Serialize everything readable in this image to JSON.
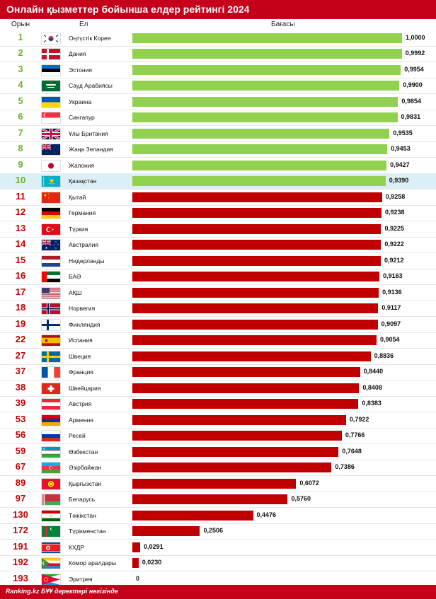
{
  "header": {
    "title": "Онлайн қызметтер бойынша елдер рейтингі 2024",
    "col_rank": "Орын",
    "col_country": "Ел",
    "col_score": "Бағасы"
  },
  "footer": {
    "source": "Ranking.kz БҰҰ деректері негізінде"
  },
  "colors": {
    "top": "#92d050",
    "other": "#c00000",
    "title_bg": "#c4001a",
    "rank_top": "#6ab42a",
    "rank_other": "#c00000",
    "highlight_bg": "#ddeff6"
  },
  "chart_data": {
    "type": "bar",
    "title": "Онлайн қызметтер бойынша елдер рейтингі 2024",
    "xlabel": "Бағасы",
    "ylabel": "Ел",
    "xlim": [
      0,
      1
    ],
    "highlighted": "Қазақстан",
    "rows": [
      {
        "rank": "1",
        "country": "Оңтүстік Корея",
        "value": 1.0,
        "label": "1,0000",
        "flag": "south-korea"
      },
      {
        "rank": "2",
        "country": "Дания",
        "value": 0.9992,
        "label": "0,9992",
        "flag": "denmark"
      },
      {
        "rank": "3",
        "country": "Эстония",
        "value": 0.9954,
        "label": "0,9954",
        "flag": "estonia"
      },
      {
        "rank": "4",
        "country": "Сауд Арабиясы",
        "value": 0.99,
        "label": "0,9900",
        "flag": "saudi-arabia"
      },
      {
        "rank": "5",
        "country": "Украина",
        "value": 0.9854,
        "label": "0,9854",
        "flag": "ukraine"
      },
      {
        "rank": "6",
        "country": "Сингапур",
        "value": 0.9831,
        "label": "0,9831",
        "flag": "singapore"
      },
      {
        "rank": "7",
        "country": "Ұлы Британия",
        "value": 0.9535,
        "label": "0,9535",
        "flag": "united-kingdom"
      },
      {
        "rank": "8",
        "country": "Жаңа Зеландия",
        "value": 0.9453,
        "label": "0,9453",
        "flag": "new-zealand"
      },
      {
        "rank": "9",
        "country": "Жапония",
        "value": 0.9427,
        "label": "0,9427",
        "flag": "japan"
      },
      {
        "rank": "10",
        "country": "Қазақстан",
        "value": 0.939,
        "label": "0,9390",
        "flag": "kazakhstan"
      },
      {
        "rank": "11",
        "country": "Қытай",
        "value": 0.9258,
        "label": "0,9258",
        "flag": "china"
      },
      {
        "rank": "12",
        "country": "Германия",
        "value": 0.9238,
        "label": "0,9238",
        "flag": "germany"
      },
      {
        "rank": "13",
        "country": "Түркия",
        "value": 0.9225,
        "label": "0,9225",
        "flag": "turkey"
      },
      {
        "rank": "14",
        "country": "Австралия",
        "value": 0.9222,
        "label": "0,9222",
        "flag": "australia"
      },
      {
        "rank": "15",
        "country": "Нидерланды",
        "value": 0.9212,
        "label": "0,9212",
        "flag": "netherlands"
      },
      {
        "rank": "16",
        "country": "БАӘ",
        "value": 0.9163,
        "label": "0,9163",
        "flag": "uae"
      },
      {
        "rank": "17",
        "country": "АҚШ",
        "value": 0.9136,
        "label": "0,9136",
        "flag": "usa"
      },
      {
        "rank": "18",
        "country": "Норвегия",
        "value": 0.9117,
        "label": "0,9117",
        "flag": "norway"
      },
      {
        "rank": "19",
        "country": "Финляндия",
        "value": 0.9097,
        "label": "0,9097",
        "flag": "finland"
      },
      {
        "rank": "22",
        "country": "Испания",
        "value": 0.9054,
        "label": "0,9054",
        "flag": "spain"
      },
      {
        "rank": "27",
        "country": "Швеция",
        "value": 0.8836,
        "label": "0,8836",
        "flag": "sweden"
      },
      {
        "rank": "37",
        "country": "Франция",
        "value": 0.844,
        "label": "0,8440",
        "flag": "france"
      },
      {
        "rank": "38",
        "country": "Швейцария",
        "value": 0.8408,
        "label": "0,8408",
        "flag": "switzerland"
      },
      {
        "rank": "39",
        "country": "Австрия",
        "value": 0.8383,
        "label": "0,8383",
        "flag": "austria"
      },
      {
        "rank": "53",
        "country": "Армения",
        "value": 0.7922,
        "label": "0,7922",
        "flag": "armenia"
      },
      {
        "rank": "56",
        "country": "Ресей",
        "value": 0.7766,
        "label": "0,7766",
        "flag": "russia"
      },
      {
        "rank": "59",
        "country": "Өзбекстан",
        "value": 0.7648,
        "label": "0,7648",
        "flag": "uzbekistan"
      },
      {
        "rank": "67",
        "country": "Әзірбайжан",
        "value": 0.7386,
        "label": "0,7386",
        "flag": "azerbaijan"
      },
      {
        "rank": "89",
        "country": "Қырғызстан",
        "value": 0.6072,
        "label": "0,6072",
        "flag": "kyrgyzstan"
      },
      {
        "rank": "97",
        "country": "Беларусь",
        "value": 0.576,
        "label": "0,5760",
        "flag": "belarus"
      },
      {
        "rank": "130",
        "country": "Тәжікстан",
        "value": 0.4476,
        "label": "0,4476",
        "flag": "tajikistan"
      },
      {
        "rank": "172",
        "country": "Түрікменстан",
        "value": 0.2506,
        "label": "0,2506",
        "flag": "turkmenistan"
      },
      {
        "rank": "191",
        "country": "КХДР",
        "value": 0.0291,
        "label": "0,0291",
        "flag": "north-korea"
      },
      {
        "rank": "192",
        "country": "Комор аралдары",
        "value": 0.023,
        "label": "0,0230",
        "flag": "comoros"
      },
      {
        "rank": "193",
        "country": "Эритрея",
        "value": 0.0,
        "label": "0",
        "flag": "eritrea"
      }
    ]
  }
}
